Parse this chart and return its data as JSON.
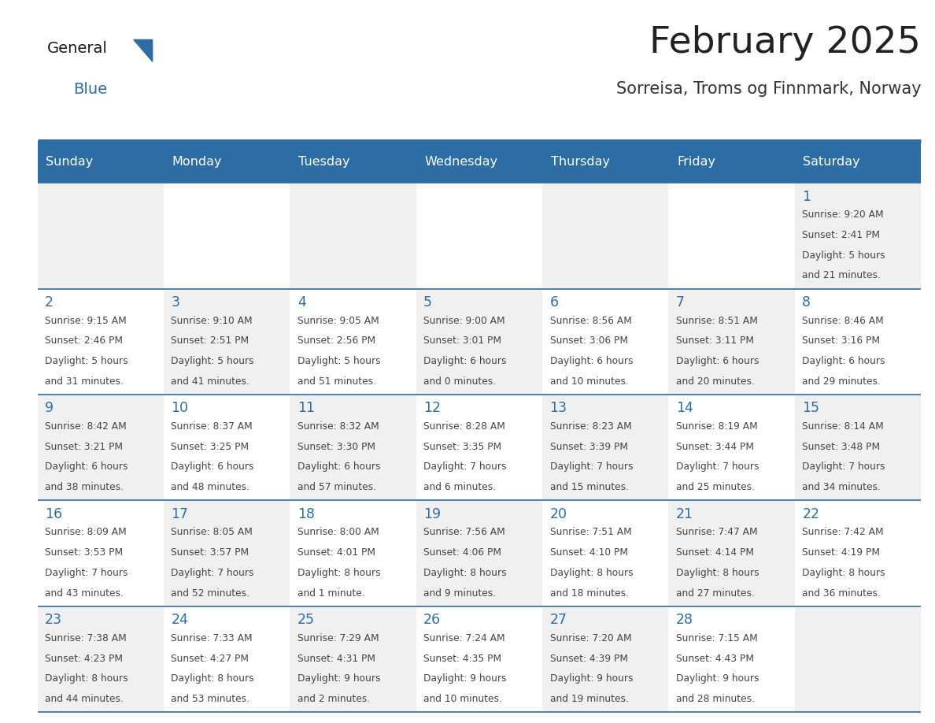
{
  "title": "February 2025",
  "subtitle": "Sorreisa, Troms og Finnmark, Norway",
  "header_bg": "#2E6DA4",
  "header_text": "#FFFFFF",
  "cell_bg_light": "#F0F0F0",
  "cell_bg_white": "#FFFFFF",
  "day_headers": [
    "Sunday",
    "Monday",
    "Tuesday",
    "Wednesday",
    "Thursday",
    "Friday",
    "Saturday"
  ],
  "title_color": "#222222",
  "subtitle_color": "#333333",
  "day_number_color": "#2E6DA4",
  "info_color": "#444444",
  "line_color": "#2E6DA4",
  "logo_general_color": "#1a1a1a",
  "logo_blue_color": "#2E6DA4",
  "days": [
    {
      "day": 1,
      "col": 6,
      "row": 0,
      "sunrise": "9:20 AM",
      "sunset": "2:41 PM",
      "daylight_line1": "Daylight: 5 hours",
      "daylight_line2": "and 21 minutes."
    },
    {
      "day": 2,
      "col": 0,
      "row": 1,
      "sunrise": "9:15 AM",
      "sunset": "2:46 PM",
      "daylight_line1": "Daylight: 5 hours",
      "daylight_line2": "and 31 minutes."
    },
    {
      "day": 3,
      "col": 1,
      "row": 1,
      "sunrise": "9:10 AM",
      "sunset": "2:51 PM",
      "daylight_line1": "Daylight: 5 hours",
      "daylight_line2": "and 41 minutes."
    },
    {
      "day": 4,
      "col": 2,
      "row": 1,
      "sunrise": "9:05 AM",
      "sunset": "2:56 PM",
      "daylight_line1": "Daylight: 5 hours",
      "daylight_line2": "and 51 minutes."
    },
    {
      "day": 5,
      "col": 3,
      "row": 1,
      "sunrise": "9:00 AM",
      "sunset": "3:01 PM",
      "daylight_line1": "Daylight: 6 hours",
      "daylight_line2": "and 0 minutes."
    },
    {
      "day": 6,
      "col": 4,
      "row": 1,
      "sunrise": "8:56 AM",
      "sunset": "3:06 PM",
      "daylight_line1": "Daylight: 6 hours",
      "daylight_line2": "and 10 minutes."
    },
    {
      "day": 7,
      "col": 5,
      "row": 1,
      "sunrise": "8:51 AM",
      "sunset": "3:11 PM",
      "daylight_line1": "Daylight: 6 hours",
      "daylight_line2": "and 20 minutes."
    },
    {
      "day": 8,
      "col": 6,
      "row": 1,
      "sunrise": "8:46 AM",
      "sunset": "3:16 PM",
      "daylight_line1": "Daylight: 6 hours",
      "daylight_line2": "and 29 minutes."
    },
    {
      "day": 9,
      "col": 0,
      "row": 2,
      "sunrise": "8:42 AM",
      "sunset": "3:21 PM",
      "daylight_line1": "Daylight: 6 hours",
      "daylight_line2": "and 38 minutes."
    },
    {
      "day": 10,
      "col": 1,
      "row": 2,
      "sunrise": "8:37 AM",
      "sunset": "3:25 PM",
      "daylight_line1": "Daylight: 6 hours",
      "daylight_line2": "and 48 minutes."
    },
    {
      "day": 11,
      "col": 2,
      "row": 2,
      "sunrise": "8:32 AM",
      "sunset": "3:30 PM",
      "daylight_line1": "Daylight: 6 hours",
      "daylight_line2": "and 57 minutes."
    },
    {
      "day": 12,
      "col": 3,
      "row": 2,
      "sunrise": "8:28 AM",
      "sunset": "3:35 PM",
      "daylight_line1": "Daylight: 7 hours",
      "daylight_line2": "and 6 minutes."
    },
    {
      "day": 13,
      "col": 4,
      "row": 2,
      "sunrise": "8:23 AM",
      "sunset": "3:39 PM",
      "daylight_line1": "Daylight: 7 hours",
      "daylight_line2": "and 15 minutes."
    },
    {
      "day": 14,
      "col": 5,
      "row": 2,
      "sunrise": "8:19 AM",
      "sunset": "3:44 PM",
      "daylight_line1": "Daylight: 7 hours",
      "daylight_line2": "and 25 minutes."
    },
    {
      "day": 15,
      "col": 6,
      "row": 2,
      "sunrise": "8:14 AM",
      "sunset": "3:48 PM",
      "daylight_line1": "Daylight: 7 hours",
      "daylight_line2": "and 34 minutes."
    },
    {
      "day": 16,
      "col": 0,
      "row": 3,
      "sunrise": "8:09 AM",
      "sunset": "3:53 PM",
      "daylight_line1": "Daylight: 7 hours",
      "daylight_line2": "and 43 minutes."
    },
    {
      "day": 17,
      "col": 1,
      "row": 3,
      "sunrise": "8:05 AM",
      "sunset": "3:57 PM",
      "daylight_line1": "Daylight: 7 hours",
      "daylight_line2": "and 52 minutes."
    },
    {
      "day": 18,
      "col": 2,
      "row": 3,
      "sunrise": "8:00 AM",
      "sunset": "4:01 PM",
      "daylight_line1": "Daylight: 8 hours",
      "daylight_line2": "and 1 minute."
    },
    {
      "day": 19,
      "col": 3,
      "row": 3,
      "sunrise": "7:56 AM",
      "sunset": "4:06 PM",
      "daylight_line1": "Daylight: 8 hours",
      "daylight_line2": "and 9 minutes."
    },
    {
      "day": 20,
      "col": 4,
      "row": 3,
      "sunrise": "7:51 AM",
      "sunset": "4:10 PM",
      "daylight_line1": "Daylight: 8 hours",
      "daylight_line2": "and 18 minutes."
    },
    {
      "day": 21,
      "col": 5,
      "row": 3,
      "sunrise": "7:47 AM",
      "sunset": "4:14 PM",
      "daylight_line1": "Daylight: 8 hours",
      "daylight_line2": "and 27 minutes."
    },
    {
      "day": 22,
      "col": 6,
      "row": 3,
      "sunrise": "7:42 AM",
      "sunset": "4:19 PM",
      "daylight_line1": "Daylight: 8 hours",
      "daylight_line2": "and 36 minutes."
    },
    {
      "day": 23,
      "col": 0,
      "row": 4,
      "sunrise": "7:38 AM",
      "sunset": "4:23 PM",
      "daylight_line1": "Daylight: 8 hours",
      "daylight_line2": "and 44 minutes."
    },
    {
      "day": 24,
      "col": 1,
      "row": 4,
      "sunrise": "7:33 AM",
      "sunset": "4:27 PM",
      "daylight_line1": "Daylight: 8 hours",
      "daylight_line2": "and 53 minutes."
    },
    {
      "day": 25,
      "col": 2,
      "row": 4,
      "sunrise": "7:29 AM",
      "sunset": "4:31 PM",
      "daylight_line1": "Daylight: 9 hours",
      "daylight_line2": "and 2 minutes."
    },
    {
      "day": 26,
      "col": 3,
      "row": 4,
      "sunrise": "7:24 AM",
      "sunset": "4:35 PM",
      "daylight_line1": "Daylight: 9 hours",
      "daylight_line2": "and 10 minutes."
    },
    {
      "day": 27,
      "col": 4,
      "row": 4,
      "sunrise": "7:20 AM",
      "sunset": "4:39 PM",
      "daylight_line1": "Daylight: 9 hours",
      "daylight_line2": "and 19 minutes."
    },
    {
      "day": 28,
      "col": 5,
      "row": 4,
      "sunrise": "7:15 AM",
      "sunset": "4:43 PM",
      "daylight_line1": "Daylight: 9 hours",
      "daylight_line2": "and 28 minutes."
    }
  ]
}
